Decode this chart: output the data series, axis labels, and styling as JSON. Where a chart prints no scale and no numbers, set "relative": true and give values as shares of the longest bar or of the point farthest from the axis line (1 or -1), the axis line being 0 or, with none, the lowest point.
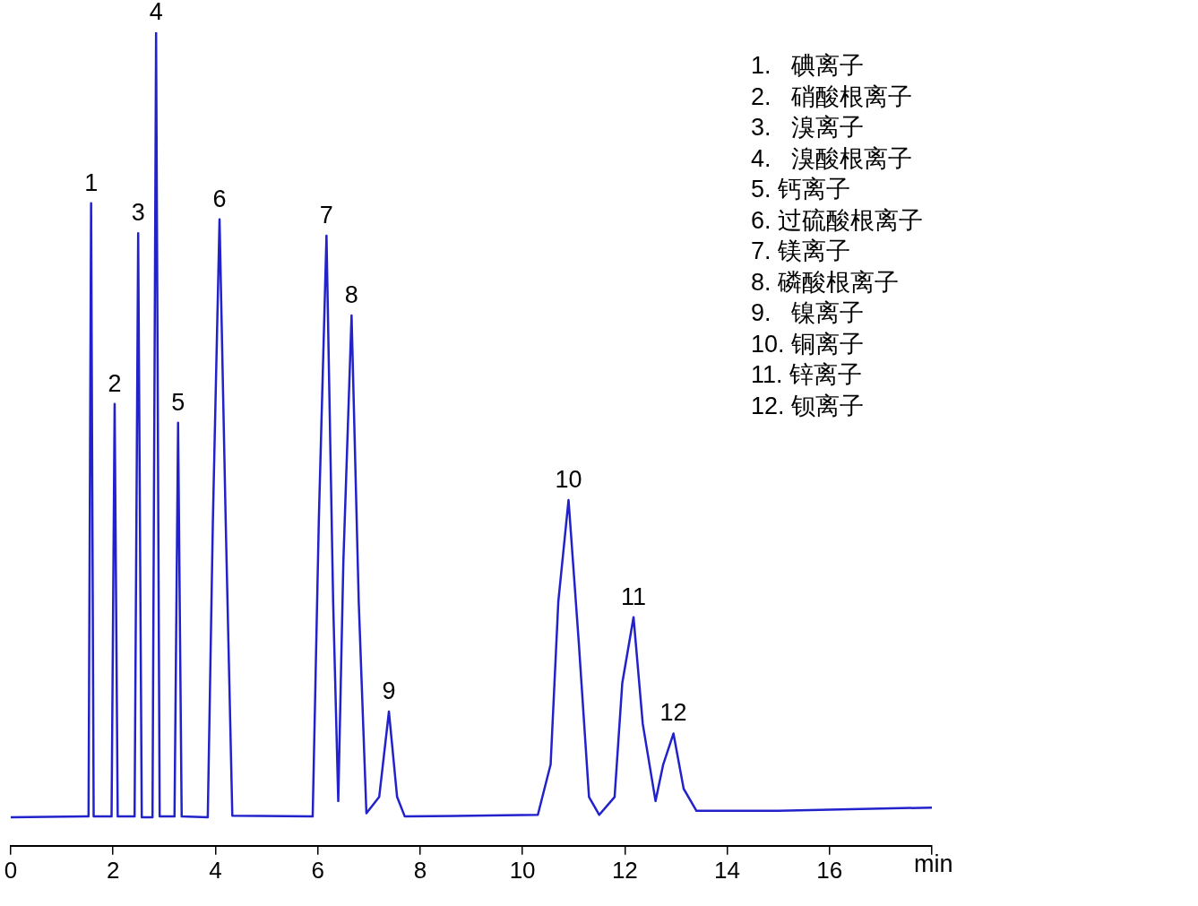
{
  "chart_data": {
    "type": "line",
    "relative": true,
    "xlabel": "min",
    "xlim": [
      0,
      18
    ],
    "xticks": [
      0,
      2,
      4,
      6,
      8,
      10,
      12,
      14,
      16,
      {
        "value": 18,
        "label": null
      }
    ],
    "marker": "none",
    "legend": false,
    "series": [
      {
        "color": "#2222cc",
        "x": [
          0,
          1.45,
          1.52,
          1.57,
          1.62,
          1.97,
          2.03,
          2.09,
          2.42,
          2.49,
          2.56,
          2.77,
          2.84,
          2.91,
          3.2,
          3.27,
          3.34,
          3.85,
          3.95,
          4.08,
          4.2,
          4.33,
          5.9,
          6.02,
          6.17,
          6.3,
          6.4,
          6.5,
          6.66,
          6.8,
          6.95,
          7.2,
          7.39,
          7.55,
          7.7,
          10.3,
          10.55,
          10.7,
          10.9,
          11.1,
          11.3,
          11.5,
          11.8,
          11.95,
          12.17,
          12.35,
          12.6,
          12.75,
          12.95,
          13.15,
          13.4,
          15,
          18
        ],
        "values": [
          0.035,
          0.036,
          0.036,
          0.79,
          0.036,
          0.036,
          0.543,
          0.036,
          0.036,
          0.753,
          0.035,
          0.035,
          1,
          0.036,
          0.036,
          0.52,
          0.036,
          0.035,
          0.4,
          0.77,
          0.4,
          0.037,
          0.036,
          0.4,
          0.75,
          0.3,
          0.055,
          0.35,
          0.652,
          0.3,
          0.04,
          0.06,
          0.165,
          0.06,
          0.036,
          0.038,
          0.1,
          0.3,
          0.425,
          0.25,
          0.06,
          0.038,
          0.06,
          0.2,
          0.281,
          0.15,
          0.055,
          0.1,
          0.138,
          0.07,
          0.043,
          0.043,
          0.047
        ]
      }
    ],
    "annotations": [
      {
        "text": "1",
        "x": 1.57,
        "y": 0.79
      },
      {
        "text": "2",
        "x": 2.03,
        "y": 0.543
      },
      {
        "text": "3",
        "x": 2.49,
        "y": 0.753
      },
      {
        "text": "4",
        "x": 2.84,
        "y": 1
      },
      {
        "text": "5",
        "x": 3.27,
        "y": 0.52
      },
      {
        "text": "6",
        "x": 4.08,
        "y": 0.77
      },
      {
        "text": "7",
        "x": 6.17,
        "y": 0.75
      },
      {
        "text": "8",
        "x": 6.66,
        "y": 0.652
      },
      {
        "text": "9",
        "x": 7.39,
        "y": 0.165
      },
      {
        "text": "10",
        "x": 10.9,
        "y": 0.425
      },
      {
        "text": "11",
        "x": 12.17,
        "y": 0.281
      },
      {
        "text": "12",
        "x": 12.95,
        "y": 0.138
      },
      "1.   碘离子",
      "2.   硝酸根离子",
      "3.   溴离子",
      "4.   溴酸根离子",
      "5. 钙离子",
      "6. 过硫酸根离子",
      "7. 镁离子",
      "8. 磷酸根离子",
      "9.   镍离子",
      "10. 铜离子",
      "11. 锌离子",
      "12. 钡离子"
    ]
  }
}
